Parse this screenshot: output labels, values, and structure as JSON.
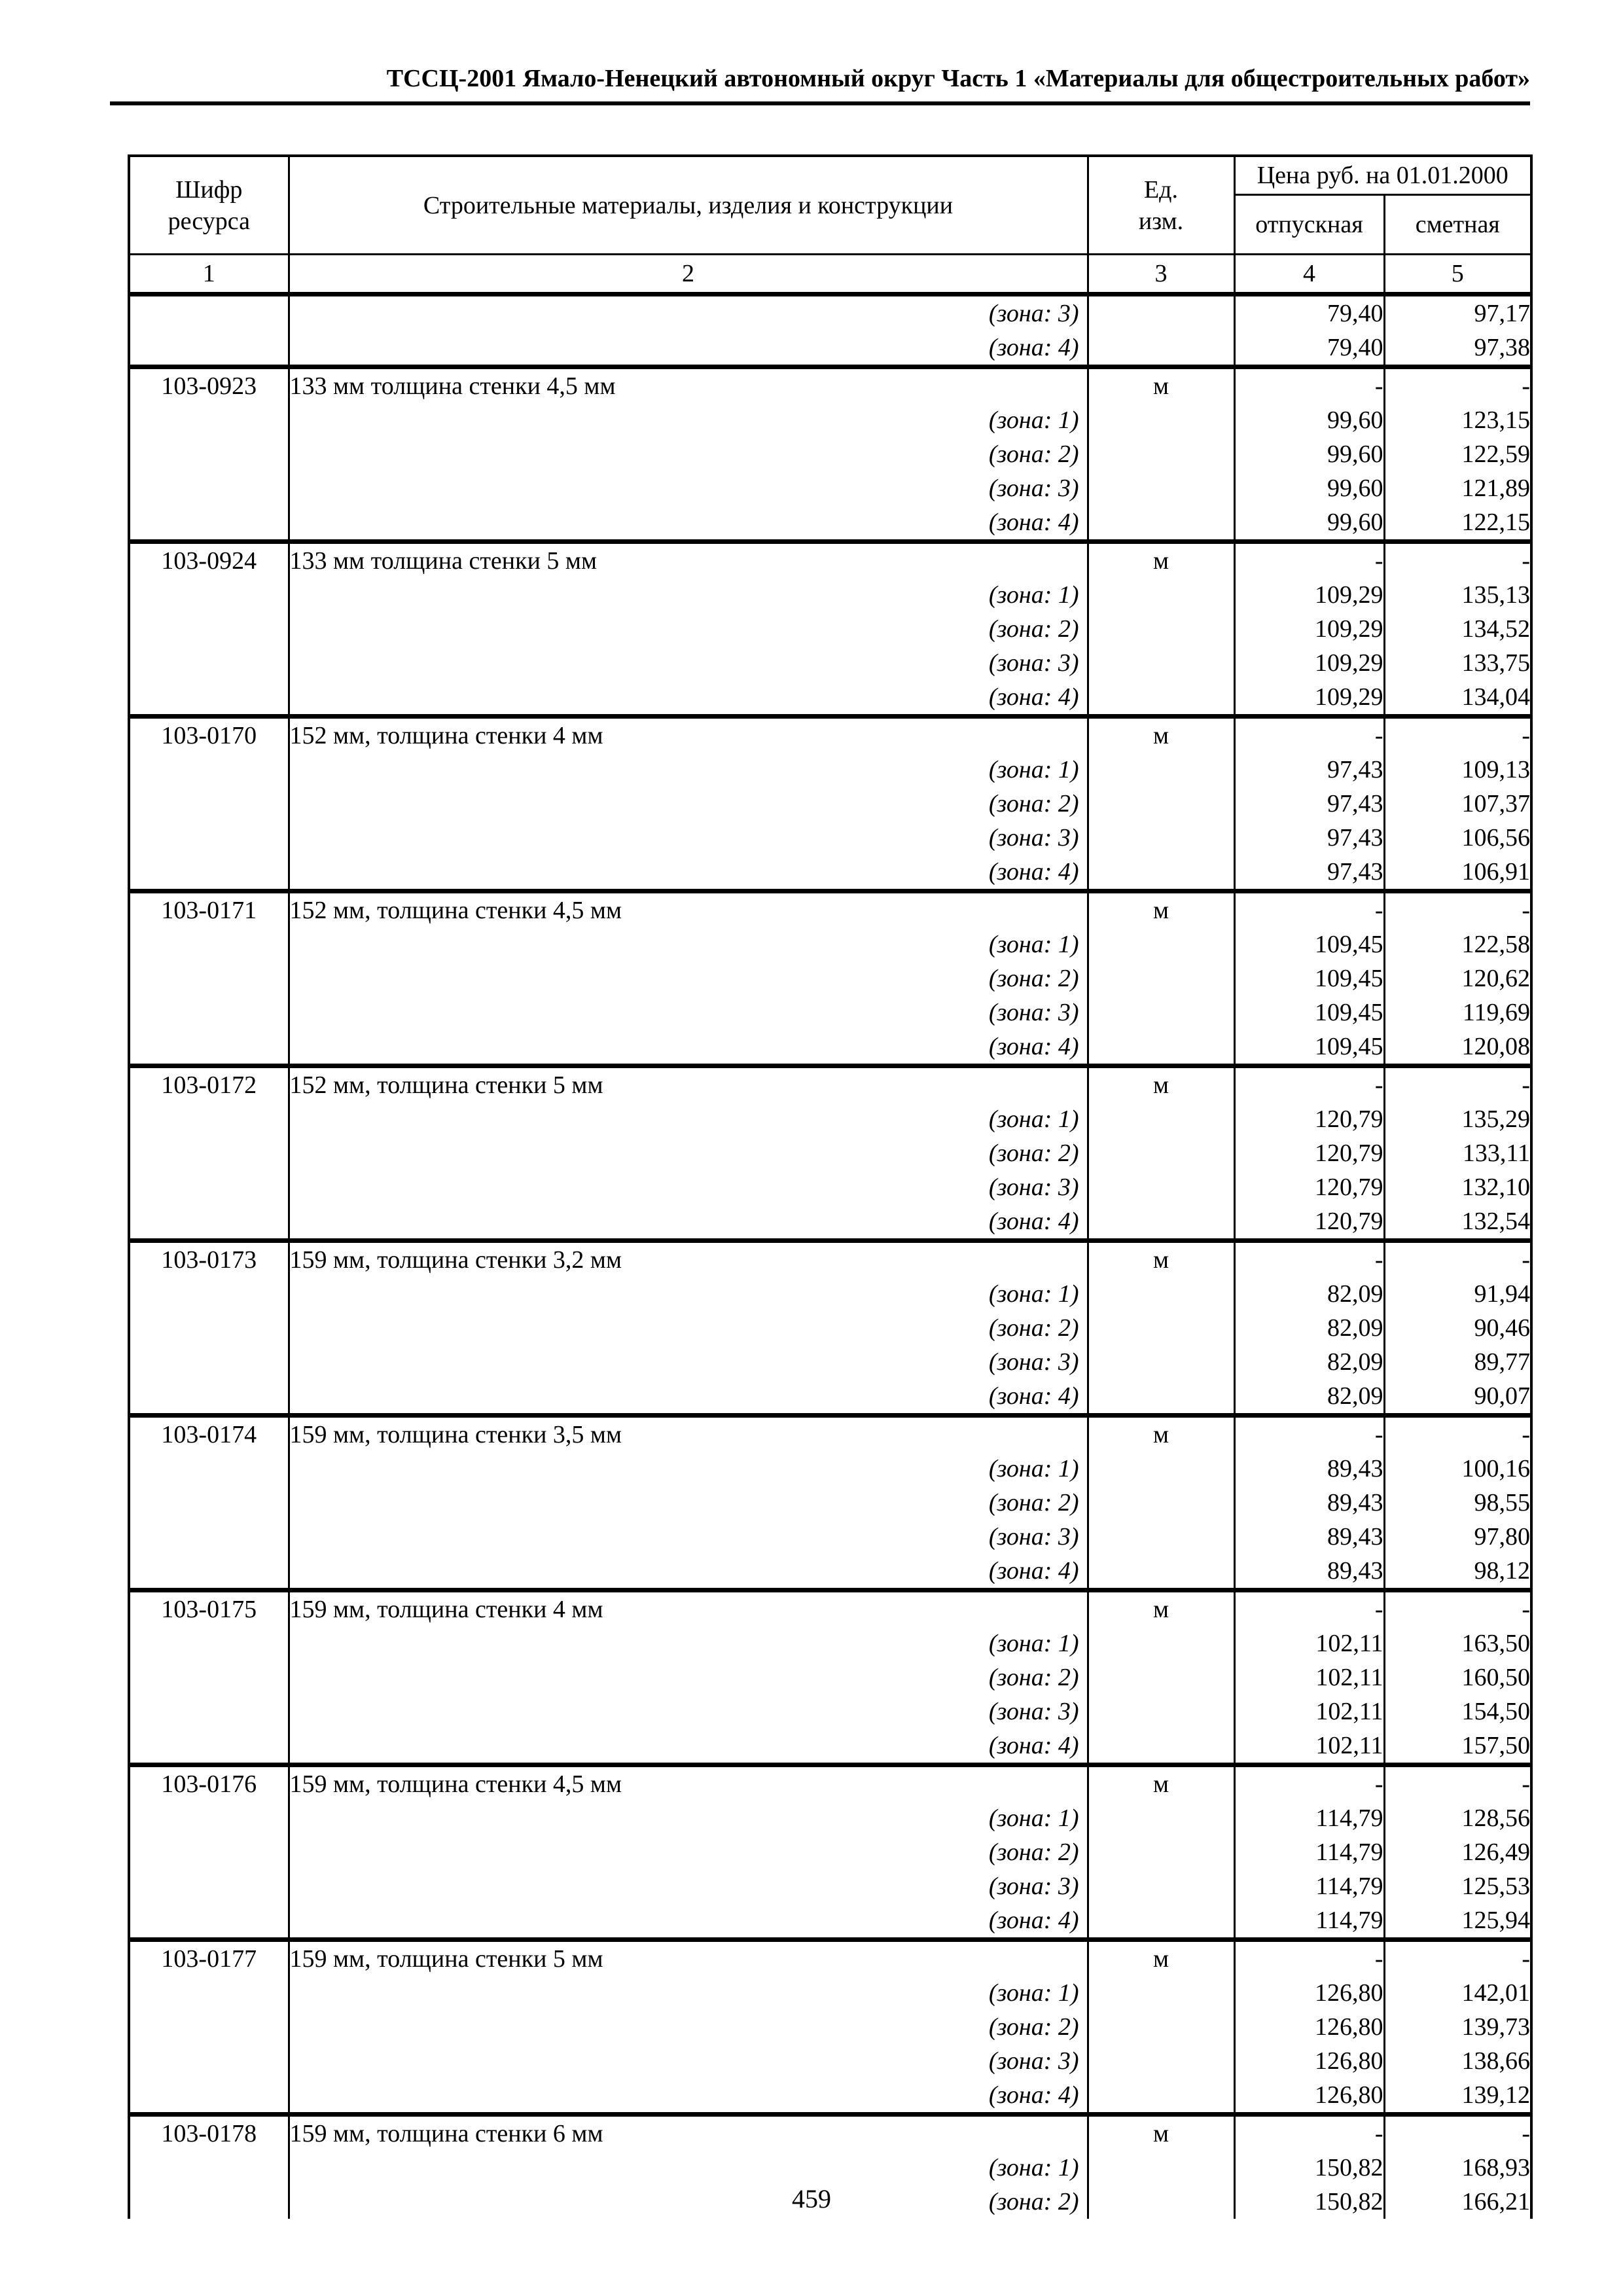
{
  "page": {
    "header": "ТССЦ-2001 Ямало-Ненецкий автономный округ Часть 1 «Материалы для общестроительных работ»",
    "page_number": "459"
  },
  "table": {
    "header": {
      "col_code": "Шифр\nресурса",
      "col_materials": "Строительные материалы, изделия и конструкции",
      "col_unit": "Ед.\nизм.",
      "price_group": "Цена руб. на 01.01.2000",
      "col_otpusknaya": "отпускная",
      "col_smetnaya": "сметная",
      "numbering": [
        "1",
        "2",
        "3",
        "4",
        "5"
      ]
    },
    "blocks": [
      {
        "code": "",
        "desc": "",
        "unit": "",
        "otpusknaya": "",
        "smetnaya": "",
        "zones": [
          {
            "label": "(зона: 3)",
            "otpusknaya": "79,40",
            "smetnaya": "97,17"
          },
          {
            "label": "(зона: 4)",
            "otpusknaya": "79,40",
            "smetnaya": "97,38"
          }
        ]
      },
      {
        "code": "103-0923",
        "desc": "133 мм толщина стенки 4,5 мм",
        "unit": "м",
        "otpusknaya": "-",
        "smetnaya": "-",
        "zones": [
          {
            "label": "(зона: 1)",
            "otpusknaya": "99,60",
            "smetnaya": "123,15"
          },
          {
            "label": "(зона: 2)",
            "otpusknaya": "99,60",
            "smetnaya": "122,59"
          },
          {
            "label": "(зона: 3)",
            "otpusknaya": "99,60",
            "smetnaya": "121,89"
          },
          {
            "label": "(зона: 4)",
            "otpusknaya": "99,60",
            "smetnaya": "122,15"
          }
        ]
      },
      {
        "code": "103-0924",
        "desc": "133 мм толщина стенки 5 мм",
        "unit": "м",
        "otpusknaya": "-",
        "smetnaya": "-",
        "zones": [
          {
            "label": "(зона: 1)",
            "otpusknaya": "109,29",
            "smetnaya": "135,13"
          },
          {
            "label": "(зона: 2)",
            "otpusknaya": "109,29",
            "smetnaya": "134,52"
          },
          {
            "label": "(зона: 3)",
            "otpusknaya": "109,29",
            "smetnaya": "133,75"
          },
          {
            "label": "(зона: 4)",
            "otpusknaya": "109,29",
            "smetnaya": "134,04"
          }
        ]
      },
      {
        "code": "103-0170",
        "desc": "152 мм, толщина стенки 4 мм",
        "unit": "м",
        "otpusknaya": "-",
        "smetnaya": "-",
        "zones": [
          {
            "label": "(зона: 1)",
            "otpusknaya": "97,43",
            "smetnaya": "109,13"
          },
          {
            "label": "(зона: 2)",
            "otpusknaya": "97,43",
            "smetnaya": "107,37"
          },
          {
            "label": "(зона: 3)",
            "otpusknaya": "97,43",
            "smetnaya": "106,56"
          },
          {
            "label": "(зона: 4)",
            "otpusknaya": "97,43",
            "smetnaya": "106,91"
          }
        ]
      },
      {
        "code": "103-0171",
        "desc": "152 мм, толщина стенки 4,5 мм",
        "unit": "м",
        "otpusknaya": "-",
        "smetnaya": "-",
        "zones": [
          {
            "label": "(зона: 1)",
            "otpusknaya": "109,45",
            "smetnaya": "122,58"
          },
          {
            "label": "(зона: 2)",
            "otpusknaya": "109,45",
            "smetnaya": "120,62"
          },
          {
            "label": "(зона: 3)",
            "otpusknaya": "109,45",
            "smetnaya": "119,69"
          },
          {
            "label": "(зона: 4)",
            "otpusknaya": "109,45",
            "smetnaya": "120,08"
          }
        ]
      },
      {
        "code": "103-0172",
        "desc": "152 мм, толщина стенки 5 мм",
        "unit": "м",
        "otpusknaya": "-",
        "smetnaya": "-",
        "zones": [
          {
            "label": "(зона: 1)",
            "otpusknaya": "120,79",
            "smetnaya": "135,29"
          },
          {
            "label": "(зона: 2)",
            "otpusknaya": "120,79",
            "smetnaya": "133,11"
          },
          {
            "label": "(зона: 3)",
            "otpusknaya": "120,79",
            "smetnaya": "132,10"
          },
          {
            "label": "(зона: 4)",
            "otpusknaya": "120,79",
            "smetnaya": "132,54"
          }
        ]
      },
      {
        "code": "103-0173",
        "desc": "159 мм, толщина стенки 3,2 мм",
        "unit": "м",
        "otpusknaya": "-",
        "smetnaya": "-",
        "zones": [
          {
            "label": "(зона: 1)",
            "otpusknaya": "82,09",
            "smetnaya": "91,94"
          },
          {
            "label": "(зона: 2)",
            "otpusknaya": "82,09",
            "smetnaya": "90,46"
          },
          {
            "label": "(зона: 3)",
            "otpusknaya": "82,09",
            "smetnaya": "89,77"
          },
          {
            "label": "(зона: 4)",
            "otpusknaya": "82,09",
            "smetnaya": "90,07"
          }
        ]
      },
      {
        "code": "103-0174",
        "desc": "159 мм, толщина стенки 3,5 мм",
        "unit": "м",
        "otpusknaya": "-",
        "smetnaya": "-",
        "zones": [
          {
            "label": "(зона: 1)",
            "otpusknaya": "89,43",
            "smetnaya": "100,16"
          },
          {
            "label": "(зона: 2)",
            "otpusknaya": "89,43",
            "smetnaya": "98,55"
          },
          {
            "label": "(зона: 3)",
            "otpusknaya": "89,43",
            "smetnaya": "97,80"
          },
          {
            "label": "(зона: 4)",
            "otpusknaya": "89,43",
            "smetnaya": "98,12"
          }
        ]
      },
      {
        "code": "103-0175",
        "desc": "159 мм, толщина стенки 4 мм",
        "unit": "м",
        "otpusknaya": "-",
        "smetnaya": "-",
        "zones": [
          {
            "label": "(зона: 1)",
            "otpusknaya": "102,11",
            "smetnaya": "163,50"
          },
          {
            "label": "(зона: 2)",
            "otpusknaya": "102,11",
            "smetnaya": "160,50"
          },
          {
            "label": "(зона: 3)",
            "otpusknaya": "102,11",
            "smetnaya": "154,50"
          },
          {
            "label": "(зона: 4)",
            "otpusknaya": "102,11",
            "smetnaya": "157,50"
          }
        ]
      },
      {
        "code": "103-0176",
        "desc": "159 мм, толщина стенки 4,5 мм",
        "unit": "м",
        "otpusknaya": "-",
        "smetnaya": "-",
        "zones": [
          {
            "label": "(зона: 1)",
            "otpusknaya": "114,79",
            "smetnaya": "128,56"
          },
          {
            "label": "(зона: 2)",
            "otpusknaya": "114,79",
            "smetnaya": "126,49"
          },
          {
            "label": "(зона: 3)",
            "otpusknaya": "114,79",
            "smetnaya": "125,53"
          },
          {
            "label": "(зона: 4)",
            "otpusknaya": "114,79",
            "smetnaya": "125,94"
          }
        ]
      },
      {
        "code": "103-0177",
        "desc": "159 мм, толщина стенки 5 мм",
        "unit": "м",
        "otpusknaya": "-",
        "smetnaya": "-",
        "zones": [
          {
            "label": "(зона: 1)",
            "otpusknaya": "126,80",
            "smetnaya": "142,01"
          },
          {
            "label": "(зона: 2)",
            "otpusknaya": "126,80",
            "smetnaya": "139,73"
          },
          {
            "label": "(зона: 3)",
            "otpusknaya": "126,80",
            "smetnaya": "138,66"
          },
          {
            "label": "(зона: 4)",
            "otpusknaya": "126,80",
            "smetnaya": "139,12"
          }
        ]
      },
      {
        "code": "103-0178",
        "desc": "159 мм, толщина стенки 6 мм",
        "unit": "м",
        "otpusknaya": "-",
        "smetnaya": "-",
        "zones": [
          {
            "label": "(зона: 1)",
            "otpusknaya": "150,82",
            "smetnaya": "168,93"
          },
          {
            "label": "(зона: 2)",
            "otpusknaya": "150,82",
            "smetnaya": "166,21"
          }
        ]
      }
    ]
  }
}
